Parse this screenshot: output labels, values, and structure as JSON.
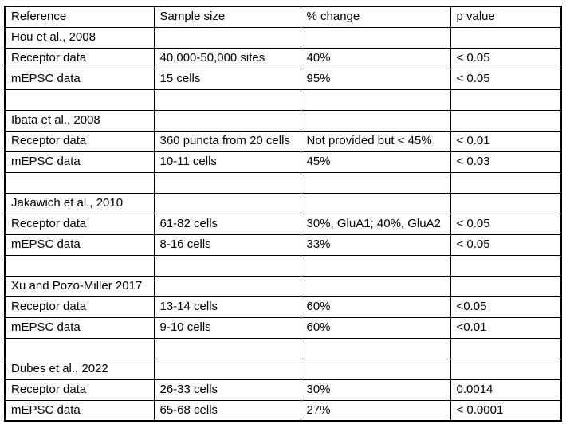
{
  "document": {
    "table": {
      "columns": [
        "Reference",
        "Sample size",
        "% change",
        "p value"
      ],
      "rows": [
        {
          "type": "reference",
          "cells": [
            "Hou et al., 2008",
            "",
            "",
            ""
          ]
        },
        {
          "type": "data",
          "cells": [
            "Receptor data",
            "40,000-50,000 sites",
            "40%",
            "< 0.05"
          ]
        },
        {
          "type": "data",
          "cells": [
            "mEPSC data",
            "15 cells",
            "95%",
            "< 0.05"
          ]
        },
        {
          "type": "spacer",
          "cells": [
            "",
            "",
            "",
            ""
          ]
        },
        {
          "type": "reference",
          "cells": [
            "Ibata et al., 2008",
            "",
            "",
            ""
          ]
        },
        {
          "type": "data",
          "cells": [
            "Receptor data",
            "360 puncta from 20 cells",
            "Not provided but < 45%",
            "< 0.01"
          ]
        },
        {
          "type": "data",
          "cells": [
            "mEPSC data",
            "10-11 cells",
            "45%",
            "< 0.03"
          ]
        },
        {
          "type": "spacer",
          "cells": [
            "",
            "",
            "",
            ""
          ]
        },
        {
          "type": "reference",
          "cells": [
            "Jakawich et al., 2010",
            "",
            "",
            ""
          ]
        },
        {
          "type": "data",
          "cells": [
            "Receptor data",
            "61-82 cells",
            "30%, GluA1; 40%, GluA2",
            "< 0.05"
          ]
        },
        {
          "type": "data",
          "cells": [
            "mEPSC data",
            "8-16 cells",
            "33%",
            "< 0.05"
          ]
        },
        {
          "type": "spacer",
          "cells": [
            "",
            "",
            "",
            ""
          ]
        },
        {
          "type": "reference",
          "cells": [
            "Xu and Pozo-Miller 2017",
            "",
            "",
            ""
          ]
        },
        {
          "type": "data",
          "cells": [
            "Receptor data",
            "13-14 cells",
            "60%",
            "<0.05"
          ]
        },
        {
          "type": "data",
          "cells": [
            "mEPSC data",
            "9-10 cells",
            "60%",
            "<0.01"
          ]
        },
        {
          "type": "spacer",
          "cells": [
            "",
            "",
            "",
            ""
          ]
        },
        {
          "type": "reference",
          "cells": [
            "Dubes et al., 2022",
            "",
            "",
            ""
          ]
        },
        {
          "type": "data",
          "cells": [
            "Receptor data",
            "26-33 cells",
            "30%",
            "0.0014"
          ]
        },
        {
          "type": "data",
          "cells": [
            "mEPSC data",
            "65-68 cells",
            "27%",
            "< 0.0001"
          ]
        }
      ],
      "colors": {
        "border": "#000000",
        "text": "#000000",
        "background": "#ffffff"
      }
    }
  }
}
